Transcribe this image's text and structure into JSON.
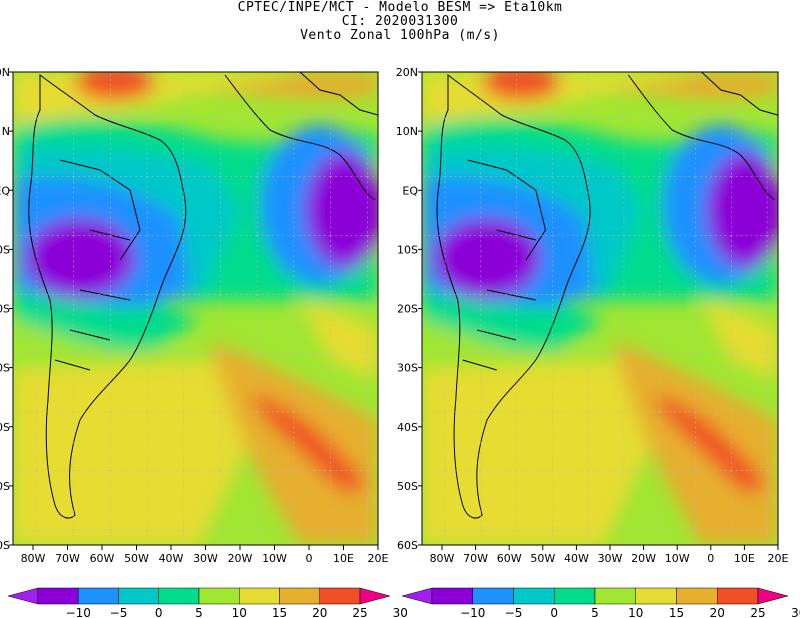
{
  "header": {
    "line1": "CPTEC/INPE/MCT -   Modelo BESM => Eta10km",
    "line2": "CI: 2020031300",
    "line3": "Vento Zonal 100hPa (m/s)"
  },
  "maps": {
    "lon_labels": [
      "80W",
      "70W",
      "60W",
      "50W",
      "40W",
      "30W",
      "20W",
      "10W",
      "0",
      "10E",
      "20E"
    ],
    "lat_labels": [
      "20N",
      "10N",
      "EQ",
      "10S",
      "20S",
      "30S",
      "40S",
      "50S",
      "60S"
    ],
    "left_lat_labels": [
      "0N",
      "N",
      "EQ",
      "0S",
      "0S",
      "0S",
      "0S",
      "0S",
      "0S"
    ]
  },
  "colorbar": {
    "labels": [
      "−10",
      "−5",
      "0",
      "5",
      "10",
      "15",
      "20",
      "25",
      "30"
    ],
    "colors": [
      "#a020f0",
      "#8c00d8",
      "#1e90ff",
      "#00c8c8",
      "#00dc8c",
      "#a0e632",
      "#e6dc32",
      "#e6af2d",
      "#f05028",
      "#f00082"
    ]
  },
  "chart_data": [
    {
      "type": "heatmap",
      "title": "Vento Zonal 100hPa (m/s)",
      "lon_range": [
        -85,
        20
      ],
      "lat_range": [
        -60,
        20
      ],
      "contour_levels": [
        -10,
        -5,
        0,
        5,
        10,
        15,
        20,
        25,
        30
      ],
      "features": [
        {
          "type": "min",
          "lon": -65,
          "lat": -10,
          "value": -10
        },
        {
          "type": "min",
          "lon": 0,
          "lat": -5,
          "value": -10
        },
        {
          "type": "max",
          "lon": -3,
          "lat": -43,
          "value": 30
        },
        {
          "type": "max",
          "lon": -65,
          "lat": 18,
          "value": 30
        }
      ]
    },
    {
      "type": "heatmap",
      "title": "Vento Zonal 100hPa (m/s)",
      "lon_range": [
        -85,
        20
      ],
      "lat_range": [
        -60,
        20
      ],
      "contour_levels": [
        -10,
        -5,
        0,
        5,
        10,
        15,
        20,
        25,
        30
      ],
      "features": [
        {
          "type": "min",
          "lon": -65,
          "lat": -10,
          "value": -10
        },
        {
          "type": "min",
          "lon": 8,
          "lat": -3,
          "value": -10
        },
        {
          "type": "max",
          "lon": -5,
          "lat": -45,
          "value": 30
        }
      ]
    }
  ]
}
